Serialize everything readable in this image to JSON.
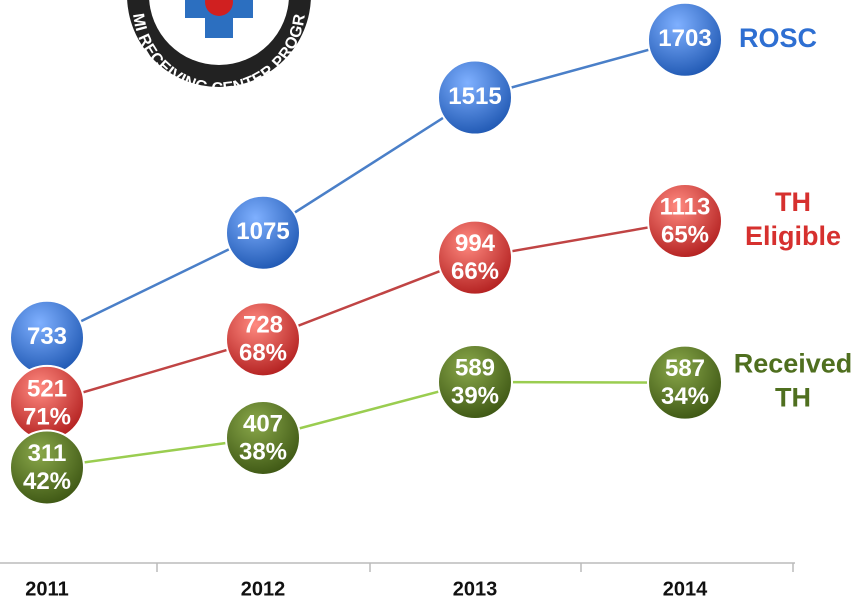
{
  "chart_data": {
    "type": "line",
    "logo_text": "EMI RECEIVING CENTER PROGRA",
    "categories": [
      "2011",
      "2012",
      "2013",
      "2014"
    ],
    "ylim": [
      0,
      1800
    ],
    "series": [
      {
        "name": "ROSC",
        "color": "#2e6fd2",
        "line_color": "#4a7fc8",
        "values": [
          733,
          1075,
          1515,
          1703
        ]
      },
      {
        "name": "TH Eligible",
        "color": "#d6302e",
        "line_color": "#c04444",
        "values": [
          521,
          728,
          994,
          1113
        ],
        "percent_labels": [
          "71%",
          "68%",
          "66%",
          "65%"
        ]
      },
      {
        "name": "Received TH",
        "color": "#4f6f1f",
        "line_color": "#9acd50",
        "values": [
          311,
          407,
          589,
          587
        ],
        "percent_labels": [
          "42%",
          "38%",
          "39%",
          "34%"
        ]
      }
    ]
  }
}
